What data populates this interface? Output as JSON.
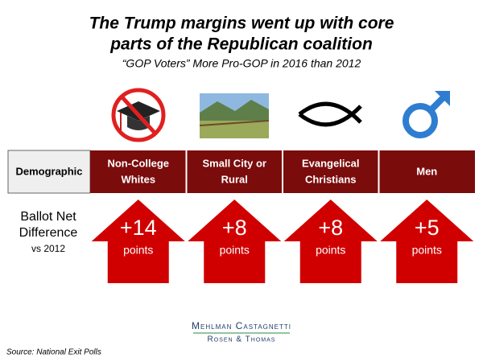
{
  "title": [
    "The Trump margins went up with core",
    "parts of the Republican coalition"
  ],
  "subtitle": "“GOP Voters” More Pro-GOP in 2016 than 2012",
  "header_label": "Demographic",
  "row_label": [
    "Ballot Net",
    "Difference"
  ],
  "row_sublabel": "vs 2012",
  "columns": [
    {
      "label": [
        "Non-College",
        "Whites"
      ],
      "value": "+14",
      "unit": "points"
    },
    {
      "label": [
        "Small City or",
        "Rural"
      ],
      "value": "+8",
      "unit": "points"
    },
    {
      "label": [
        "Evangelical",
        "Christians"
      ],
      "value": "+8",
      "unit": "points"
    },
    {
      "label": [
        "Men"
      ],
      "value": "+5",
      "unit": "points"
    }
  ],
  "logo": [
    "Mehlman Castagnetti",
    "Rosen & Thomas"
  ],
  "source": "Source: National Exit Polls"
}
